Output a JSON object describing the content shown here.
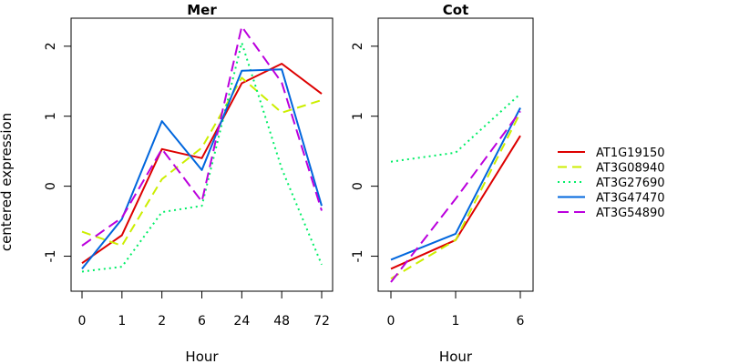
{
  "chart_data": [
    {
      "type": "line",
      "title": "Mer",
      "xlabel": "Hour",
      "ylabel": "centered expression",
      "categories": [
        "0",
        "1",
        "2",
        "6",
        "24",
        "48",
        "72"
      ],
      "ylim": [
        -1.5,
        2.4
      ],
      "yticks": [
        -1,
        0,
        1,
        2
      ],
      "grid": false,
      "series": [
        {
          "name": "AT1G19150",
          "color": "#dd0000",
          "dash": "",
          "values": [
            -1.1,
            -0.7,
            0.53,
            0.4,
            1.47,
            1.75,
            1.32
          ]
        },
        {
          "name": "AT3G08940",
          "color": "#ccee00",
          "dash": "10,6",
          "values": [
            -0.65,
            -0.85,
            0.1,
            0.55,
            1.55,
            1.05,
            1.23
          ]
        },
        {
          "name": "AT3G27690",
          "color": "#00ee66",
          "dash": "2,4",
          "values": [
            -1.22,
            -1.15,
            -0.37,
            -0.28,
            2.05,
            0.25,
            -1.12
          ]
        },
        {
          "name": "AT3G47470",
          "color": "#0066dd",
          "dash": "",
          "values": [
            -1.18,
            -0.47,
            0.93,
            0.23,
            1.65,
            1.67,
            -0.28
          ]
        },
        {
          "name": "AT3G54890",
          "color": "#bb00dd",
          "dash": "12,6",
          "values": [
            -0.85,
            -0.45,
            0.53,
            -0.22,
            2.28,
            1.48,
            -0.35
          ]
        }
      ]
    },
    {
      "type": "line",
      "title": "Cot",
      "xlabel": "Hour",
      "categories": [
        "0",
        "1",
        "6"
      ],
      "ylim": [
        -1.5,
        2.4
      ],
      "yticks": [
        -1,
        0,
        1,
        2
      ],
      "grid": false,
      "series": [
        {
          "name": "AT1G19150",
          "color": "#dd0000",
          "dash": "",
          "values": [
            -1.18,
            -0.77,
            0.72
          ]
        },
        {
          "name": "AT3G08940",
          "color": "#ccee00",
          "dash": "10,6",
          "values": [
            -1.32,
            -0.77,
            1.05
          ]
        },
        {
          "name": "AT3G27690",
          "color": "#00ee66",
          "dash": "2,4",
          "values": [
            0.35,
            0.48,
            1.32
          ]
        },
        {
          "name": "AT3G47470",
          "color": "#0066dd",
          "dash": "",
          "values": [
            -1.05,
            -0.68,
            1.12
          ]
        },
        {
          "name": "AT3G54890",
          "color": "#bb00dd",
          "dash": "12,6",
          "values": [
            -1.37,
            -0.18,
            1.07
          ]
        }
      ]
    }
  ],
  "legend": {
    "placement": "right",
    "entries": [
      "AT1G19150",
      "AT3G08940",
      "AT3G27690",
      "AT3G47470",
      "AT3G54890"
    ]
  }
}
